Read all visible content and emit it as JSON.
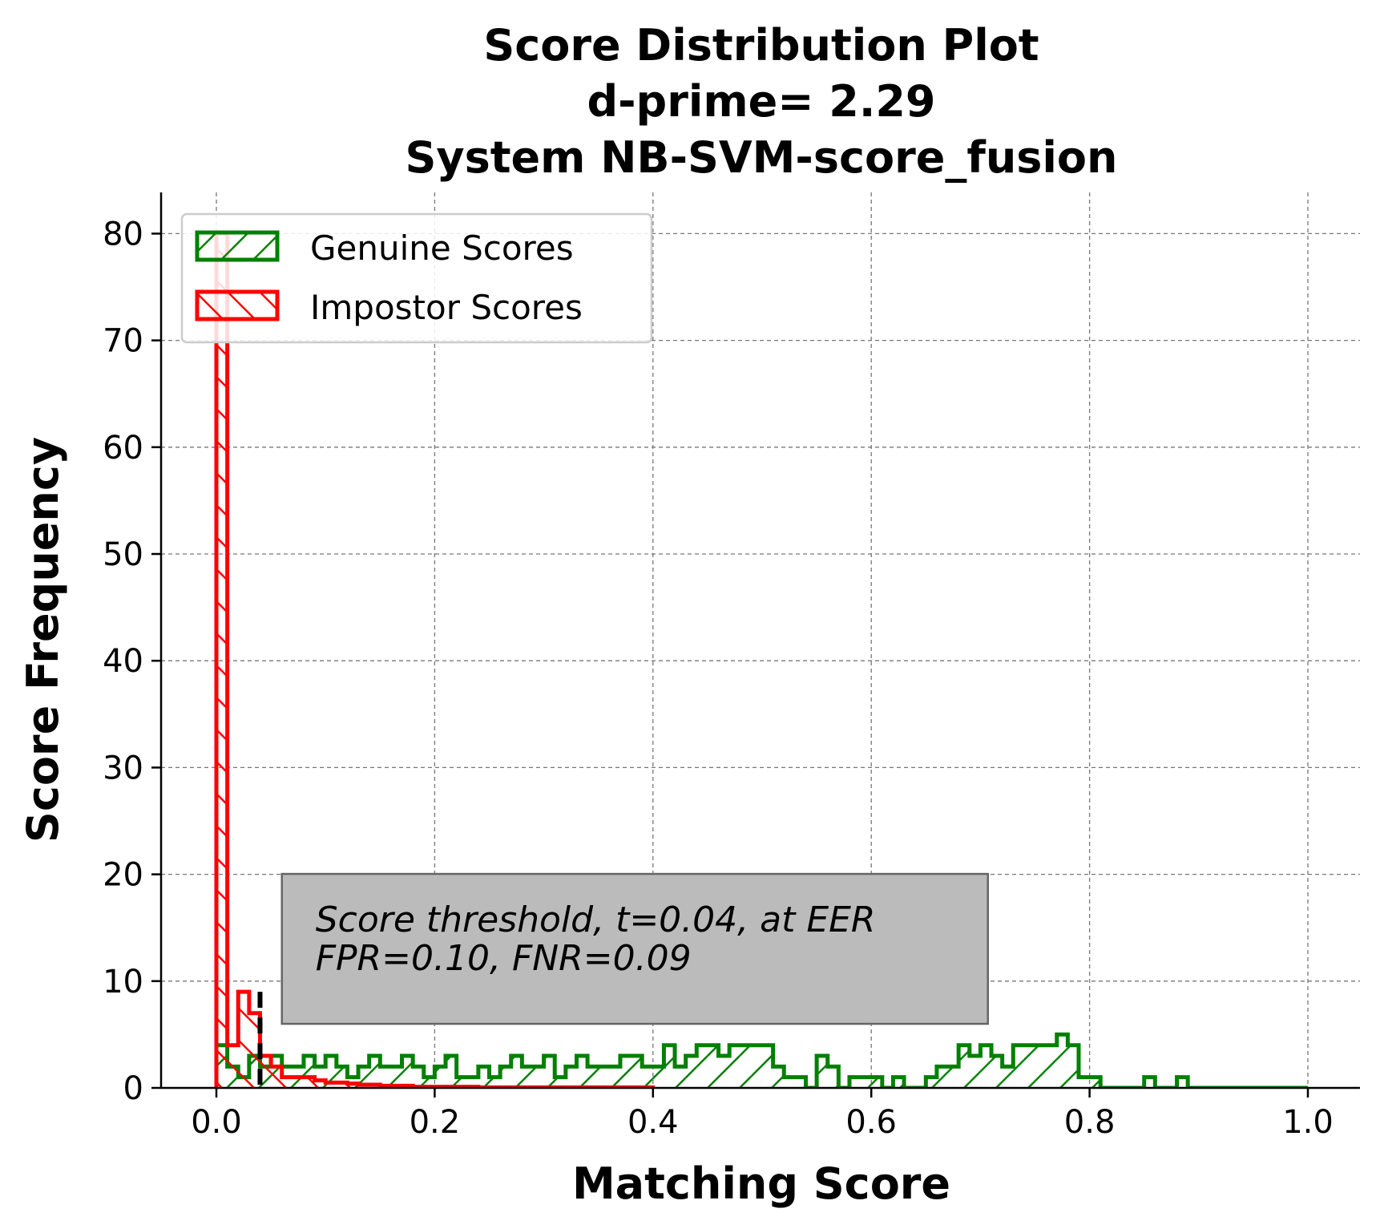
{
  "chart_data": {
    "type": "histogram",
    "title": [
      "Score Distribution Plot",
      "d-prime= 2.29",
      "System NB-SVM-score_fusion"
    ],
    "xlabel": "Matching Score",
    "ylabel": "Score Frequency",
    "xlim": [
      -0.05,
      1.05
    ],
    "ylim": [
      0,
      84
    ],
    "xticks": [
      0.0,
      0.2,
      0.4,
      0.6,
      0.8,
      1.0
    ],
    "xtick_labels": [
      "0.0",
      "0.2",
      "0.4",
      "0.6",
      "0.8",
      "1.0"
    ],
    "yticks": [
      0,
      10,
      20,
      30,
      40,
      50,
      60,
      70,
      80
    ],
    "ytick_labels": [
      "0",
      "10",
      "20",
      "30",
      "40",
      "50",
      "60",
      "70",
      "80"
    ],
    "grid": true,
    "legend_position": "upper-left",
    "bin_width": 0.01,
    "threshold": 0.04,
    "series": [
      {
        "name": "Genuine Scores",
        "color": "#008000",
        "hatch": "forward-diagonal",
        "bin_start": 0.0,
        "values": [
          4,
          2,
          1,
          3,
          2,
          3,
          2,
          2,
          3,
          2,
          3,
          2,
          1,
          2,
          3,
          2,
          2,
          3,
          2,
          1,
          2,
          3,
          1,
          1,
          2,
          1,
          2,
          3,
          2,
          2,
          3,
          1,
          2,
          3,
          2,
          2,
          2,
          3,
          3,
          2,
          2,
          4,
          2,
          3,
          4,
          4,
          3,
          4,
          4,
          4,
          4,
          2,
          1,
          1,
          0,
          3,
          2,
          0,
          1,
          1,
          1,
          0,
          1,
          0,
          0,
          1,
          2,
          2,
          4,
          3,
          4,
          3,
          2,
          4,
          4,
          4,
          4,
          5,
          4,
          1,
          1,
          0,
          0,
          0,
          0,
          1,
          0,
          0,
          1,
          0,
          0,
          0,
          0,
          0,
          0,
          0,
          0,
          0,
          0,
          0
        ]
      },
      {
        "name": "Impostor Scores",
        "color": "#ff0000",
        "hatch": "back-diagonal",
        "bin_start": 0.0,
        "values": [
          80,
          4,
          9,
          7,
          3,
          2,
          1,
          1,
          1,
          0.7,
          0.5,
          0.5,
          0.4,
          0.3,
          0.3,
          0.2,
          0.2,
          0.2,
          0.1,
          0.1,
          0.1,
          0.1,
          0.1,
          0.1,
          0.05,
          0.05,
          0.05,
          0.05,
          0.05,
          0.05,
          0.05,
          0.05,
          0.05,
          0.05,
          0.05,
          0.05,
          0.05,
          0.05,
          0.05,
          0.05
        ]
      }
    ],
    "annotation": {
      "lines": [
        "Score threshold, t=0.04, at EER",
        "FPR=0.10, FNR=0.09"
      ],
      "background": "#bbbbbb",
      "anchor": [
        0.06,
        6
      ]
    }
  }
}
